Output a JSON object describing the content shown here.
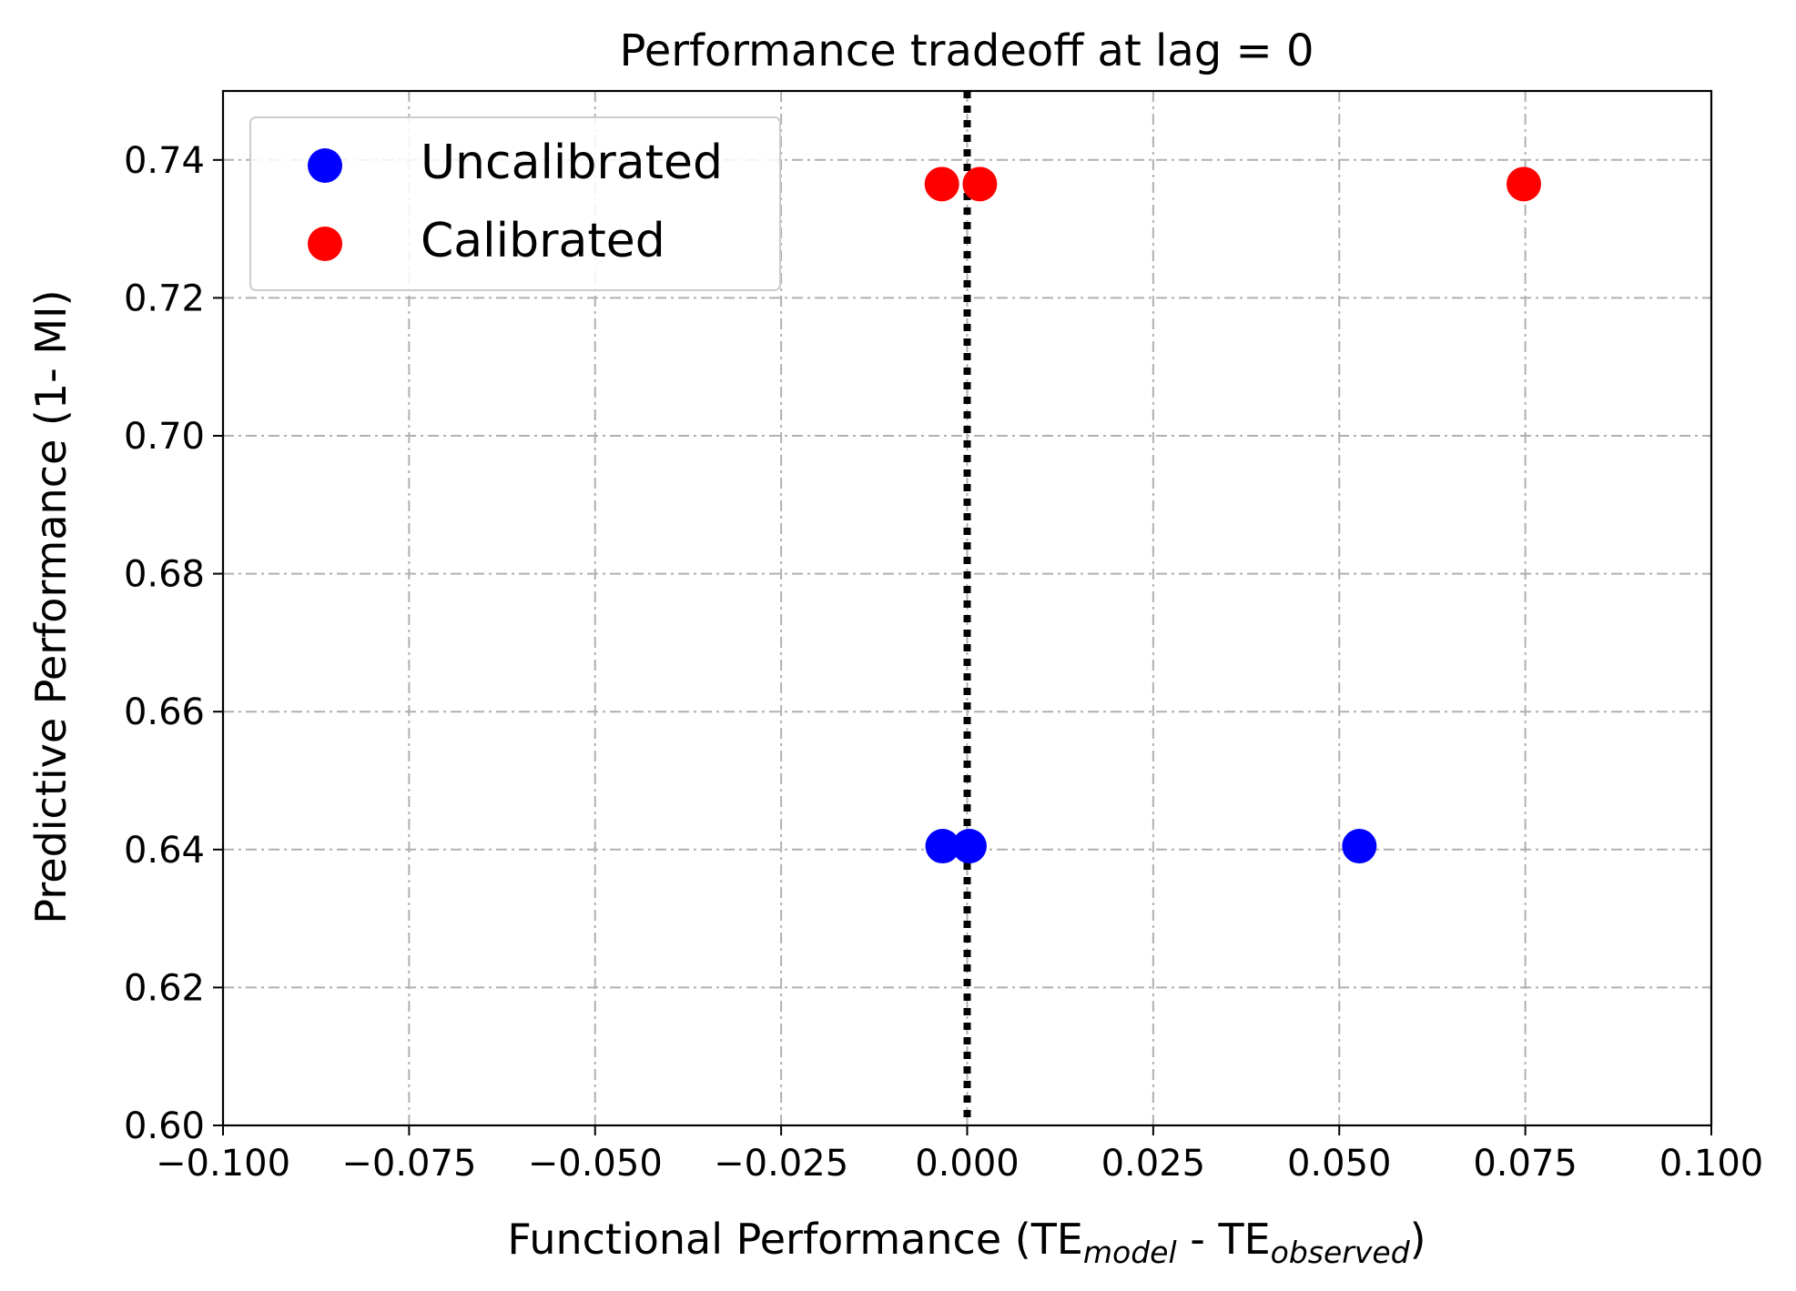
{
  "chart_data": {
    "type": "scatter",
    "title": "Performance tradeoff at lag = 0",
    "xlabel": {
      "main": "Functional Performance (TE",
      "sub1": "model",
      "middle": " - TE",
      "sub2": "observed",
      "end": ")"
    },
    "ylabel": "Predictive Performance (1- MI)",
    "xlim": [
      -0.1,
      0.1
    ],
    "ylim": [
      0.6,
      0.75
    ],
    "x_ticks": [
      -0.1,
      -0.075,
      -0.05,
      -0.025,
      0.0,
      0.025,
      0.05,
      0.075,
      0.1
    ],
    "x_tick_labels": [
      "−0.100",
      "−0.075",
      "−0.050",
      "−0.025",
      "0.000",
      "0.025",
      "0.050",
      "0.075",
      "0.100"
    ],
    "y_ticks": [
      0.6,
      0.62,
      0.64,
      0.66,
      0.68,
      0.7,
      0.72,
      0.74
    ],
    "y_tick_labels": [
      "0.60",
      "0.62",
      "0.64",
      "0.66",
      "0.68",
      "0.70",
      "0.72",
      "0.74"
    ],
    "grid": true,
    "legend_position": "top-left",
    "reference_line": {
      "x": 0.0,
      "style": "dotted",
      "color": "#000000"
    },
    "series": [
      {
        "name": "Uncalibrated",
        "color": "#0000ff",
        "points": [
          {
            "x": -0.0033,
            "y": 0.6405
          },
          {
            "x": 0.0003,
            "y": 0.6405
          },
          {
            "x": 0.0527,
            "y": 0.6405
          }
        ]
      },
      {
        "name": "Calibrated",
        "color": "#ff0000",
        "points": [
          {
            "x": -0.0034,
            "y": 0.7365
          },
          {
            "x": 0.0017,
            "y": 0.7365
          },
          {
            "x": 0.0748,
            "y": 0.7365
          }
        ]
      }
    ]
  }
}
